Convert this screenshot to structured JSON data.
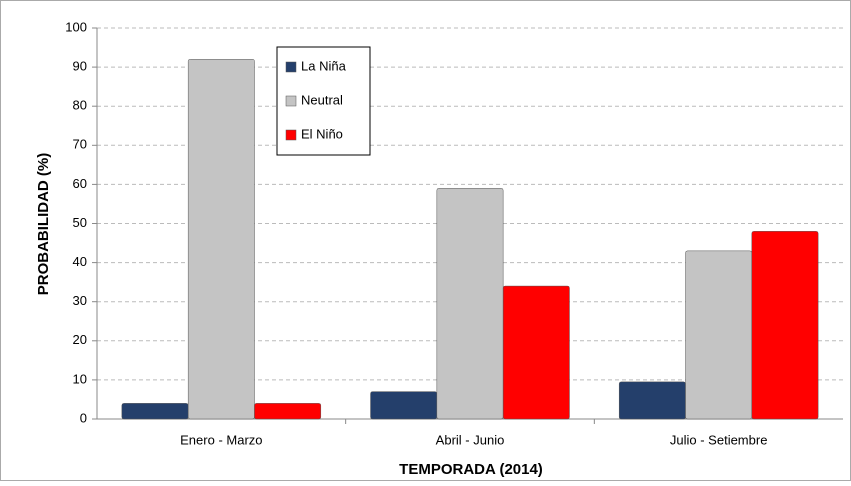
{
  "chart_data": {
    "type": "bar",
    "x_label": "TEMPORADA (2014)",
    "y_label": "PROBABILIDAD (%)",
    "categories": [
      "Enero - Marzo",
      "Abril - Junio",
      "Julio - Setiembre"
    ],
    "series": [
      {
        "name": "La Niña",
        "color": "#243f6b",
        "values": [
          4,
          7,
          9.5
        ]
      },
      {
        "name": "Neutral",
        "color": "#c4c4c4",
        "values": [
          92,
          59,
          43
        ]
      },
      {
        "name": "El Niño",
        "color": "#ff0000",
        "values": [
          4,
          34,
          48
        ]
      }
    ],
    "ylim": [
      0,
      100
    ],
    "yticks": [
      0,
      10,
      20,
      30,
      40,
      50,
      60,
      70,
      80,
      90,
      100
    ],
    "grid": true,
    "legend": "upper left"
  }
}
